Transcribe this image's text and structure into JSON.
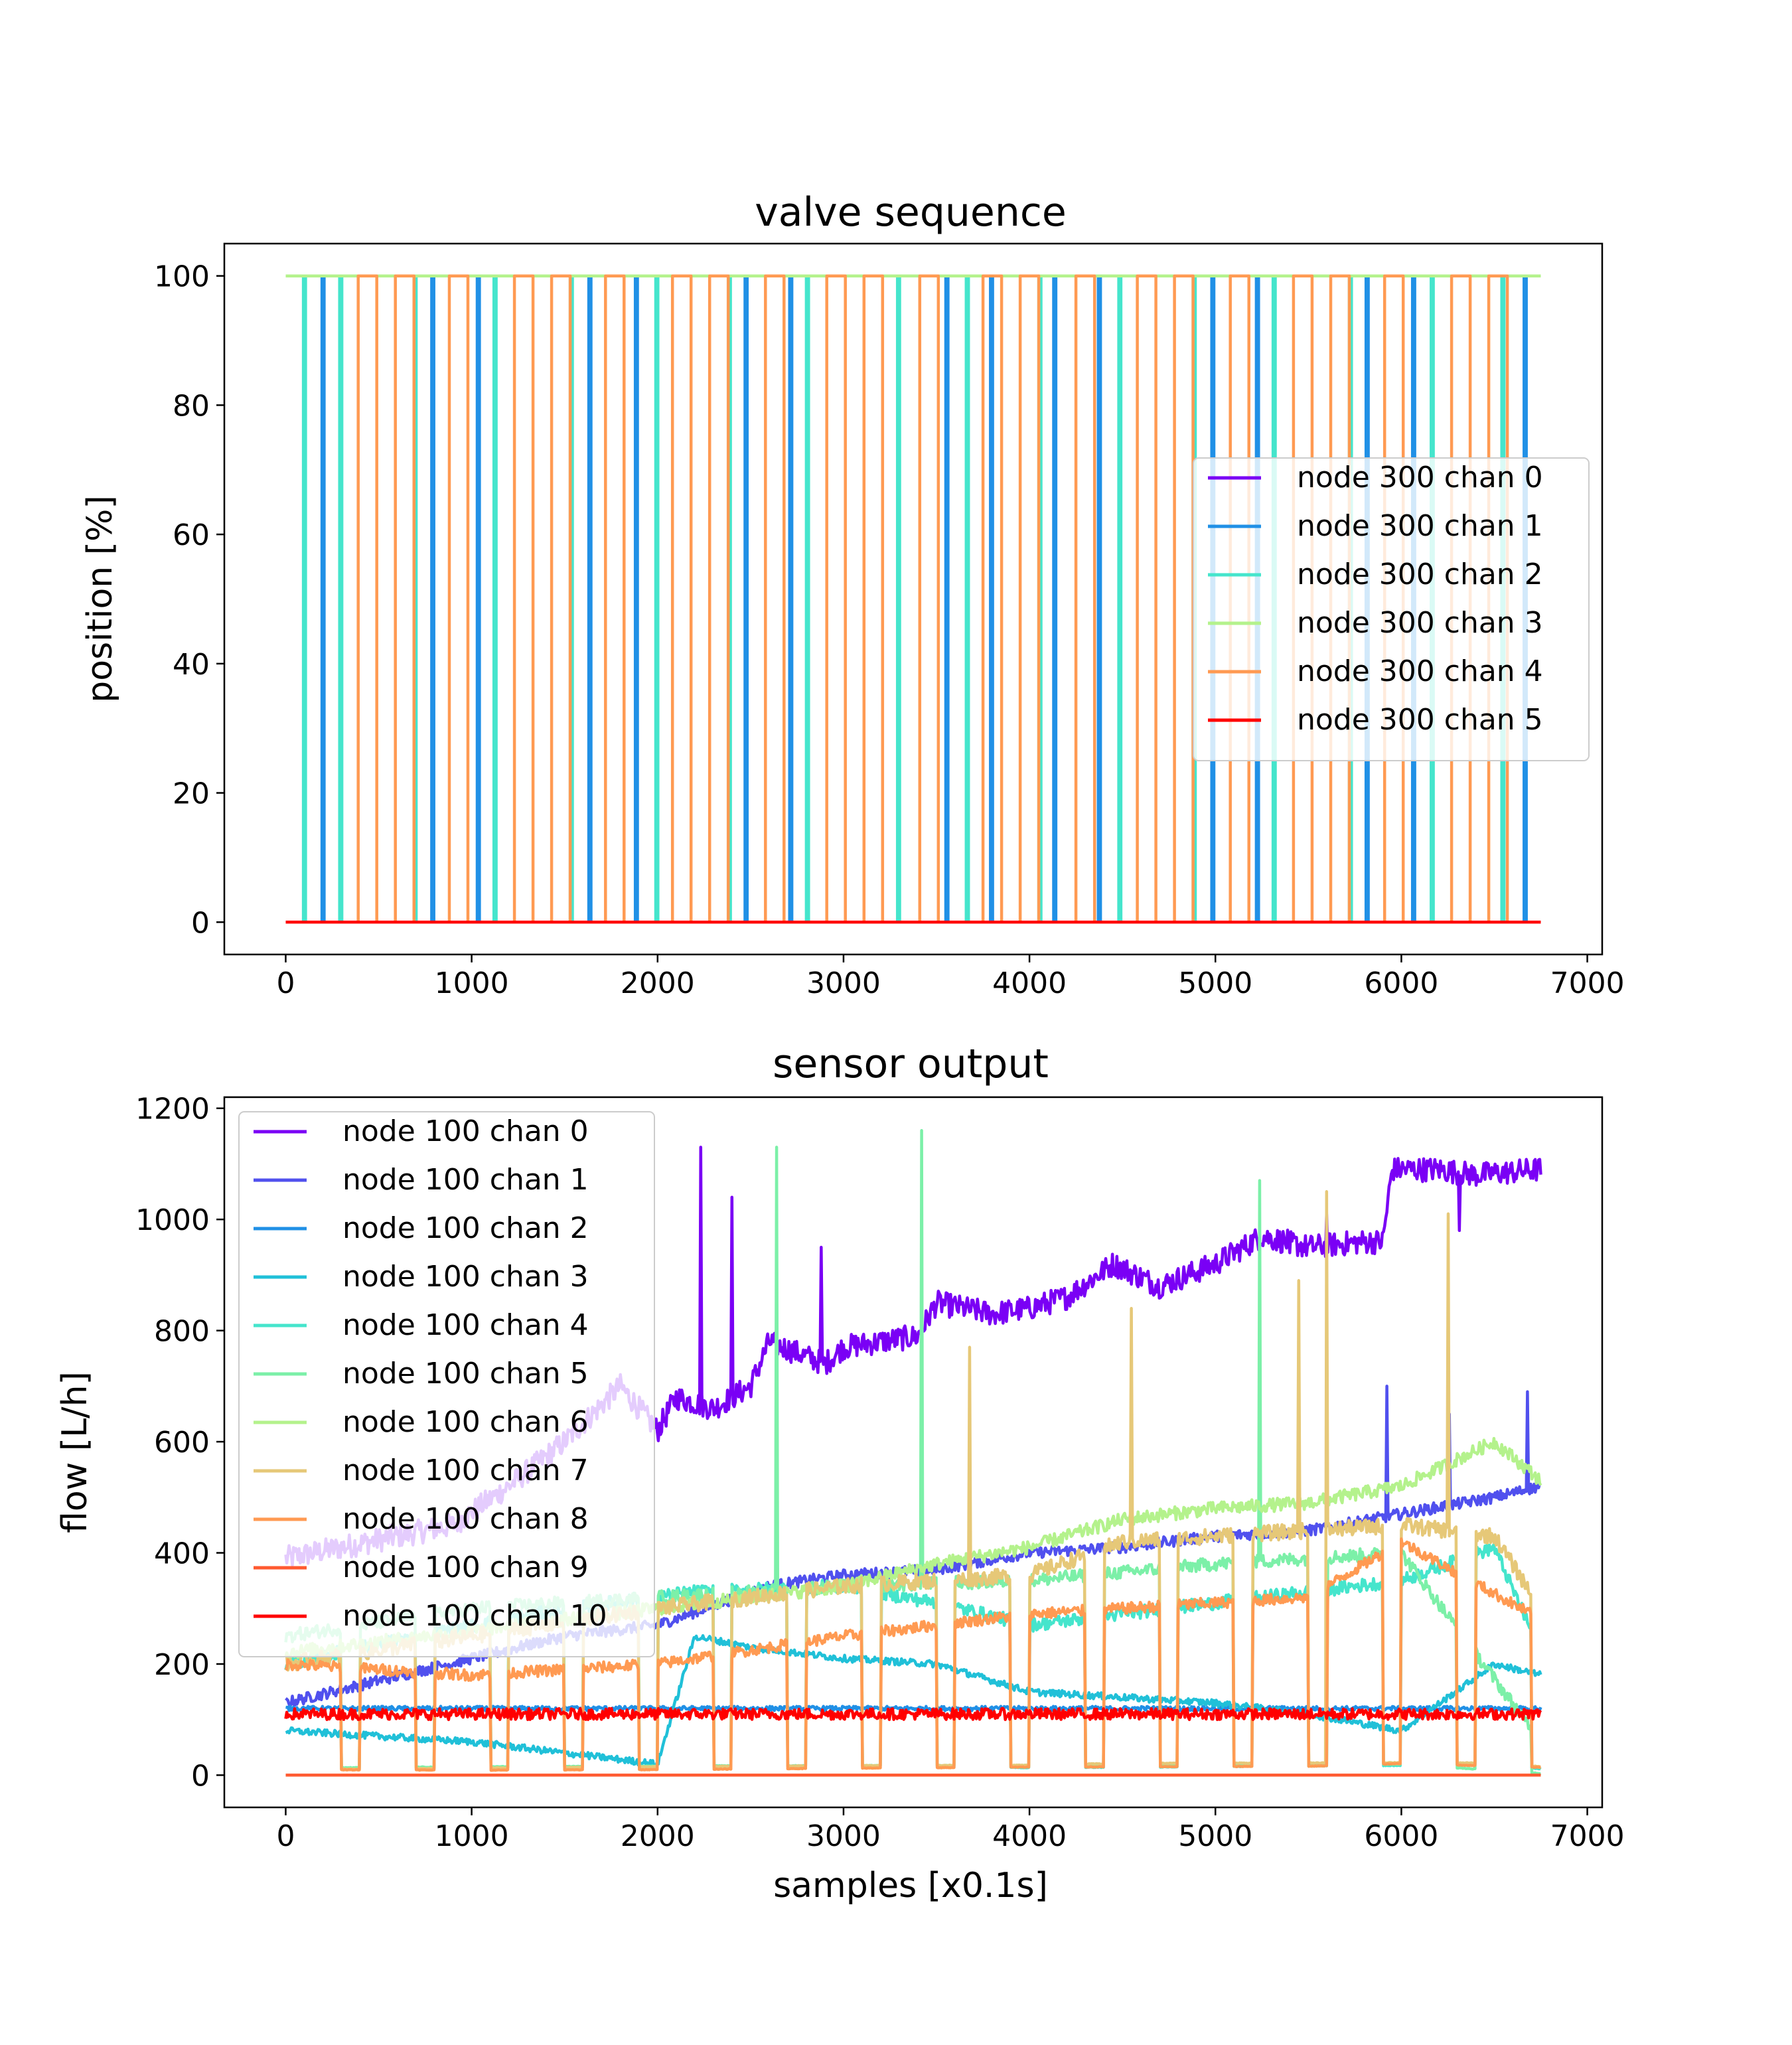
{
  "chart_data": [
    {
      "type": "line",
      "title": "valve sequence",
      "xlabel": "",
      "ylabel": "position [%]",
      "xlim": [
        -330,
        7080
      ],
      "ylim": [
        -5,
        105
      ],
      "xticks": [
        0,
        1000,
        2000,
        3000,
        4000,
        5000,
        6000,
        7000
      ],
      "yticks": [
        0,
        20,
        40,
        60,
        80,
        100
      ],
      "legend_position": "center-right",
      "series": [
        {
          "name": "node 300 chan 0",
          "color": "#7a00f5",
          "points": [
            [
              0,
              0
            ],
            [
              6750,
              0
            ]
          ]
        },
        {
          "name": "node 300 chan 1",
          "color": "#2090e6",
          "pulses": {
            "level_low": 0,
            "level_high": 100,
            "width": 12,
            "starts": [
              195,
              785,
              1030,
              1630,
              1880,
              2470,
              2710,
              3550,
              3790,
              4130,
              4370,
              4980,
              5220,
              5810,
              6060,
              6660
            ]
          }
        },
        {
          "name": "node 300 chan 2",
          "color": "#45e5cc",
          "pulses": {
            "level_low": 0,
            "level_high": 100,
            "width": 12,
            "starts": [
              95,
              290,
              690,
              1120,
              1530,
              1990,
              2380,
              2800,
              3290,
              3660,
              4050,
              4480,
              4880,
              5310,
              5720,
              6160,
              6540
            ]
          }
        },
        {
          "name": "node 300 chan 3",
          "color": "#b4f28c",
          "pulses": {
            "level_low": 100,
            "level_high": 100,
            "width": 0,
            "starts": []
          },
          "points": [
            [
              0,
              100
            ],
            [
              6750,
              100
            ]
          ]
        },
        {
          "name": "node 300 chan 4",
          "color": "#ff9a52",
          "pulses": {
            "level_low": 0,
            "level_high": 100,
            "width": 100,
            "starts": [
              390,
              590,
              880,
              1230,
              1430,
              1720,
              2080,
              2280,
              2580,
              2910,
              3110,
              3410,
              3750,
              3950,
              4250,
              4580,
              4780,
              5080,
              5420,
              5620,
              5910,
              6270,
              6470
            ]
          }
        },
        {
          "name": "node 300 chan 5",
          "color": "#ff0000",
          "points": [
            [
              0,
              0
            ],
            [
              6750,
              0
            ]
          ]
        }
      ]
    },
    {
      "type": "line",
      "title": "sensor output",
      "xlabel": "samples [x0.1s]",
      "ylabel": "flow [L/h]",
      "xlim": [
        -330,
        7080
      ],
      "ylim": [
        -58,
        1220
      ],
      "xticks": [
        0,
        1000,
        2000,
        3000,
        4000,
        5000,
        6000,
        7000
      ],
      "yticks": [
        0,
        200,
        400,
        600,
        800,
        1000,
        1200
      ],
      "legend_position": "top-left",
      "series": [
        {
          "name": "node 100 chan 0",
          "color": "#7a00f5",
          "noise": 22,
          "points": [
            [
              0,
              390
            ],
            [
              300,
              410
            ],
            [
              600,
              430
            ],
            [
              900,
              450
            ],
            [
              1200,
              520
            ],
            [
              1500,
              600
            ],
            [
              1800,
              700
            ],
            [
              2000,
              620
            ],
            [
              2100,
              680
            ],
            [
              2300,
              660
            ],
            [
              2500,
              700
            ],
            [
              2600,
              780
            ],
            [
              2900,
              740
            ],
            [
              3000,
              770
            ],
            [
              3400,
              790
            ],
            [
              3500,
              850
            ],
            [
              3800,
              830
            ],
            [
              4000,
              840
            ],
            [
              4200,
              860
            ],
            [
              4450,
              920
            ],
            [
              4700,
              880
            ],
            [
              5000,
              920
            ],
            [
              5250,
              970
            ],
            [
              5500,
              950
            ],
            [
              5800,
              960
            ],
            [
              5900,
              960
            ],
            [
              5950,
              1090
            ],
            [
              6200,
              1090
            ],
            [
              6400,
              1080
            ],
            [
              6750,
              1090
            ]
          ],
          "spikes": [
            [
              2230,
              1130
            ],
            [
              2400,
              1040
            ],
            [
              2880,
              950
            ],
            [
              5400,
              940
            ],
            [
              5600,
              1010
            ],
            [
              6310,
              980
            ],
            [
              6600,
              1080
            ]
          ]
        },
        {
          "name": "node 100 chan 1",
          "color": "#5050ee",
          "noise": 10,
          "points": [
            [
              0,
              130
            ],
            [
              500,
              170
            ],
            [
              1000,
              210
            ],
            [
              1500,
              250
            ],
            [
              2000,
              270
            ],
            [
              2600,
              340
            ],
            [
              3000,
              360
            ],
            [
              3500,
              370
            ],
            [
              4000,
              400
            ],
            [
              4500,
              410
            ],
            [
              5000,
              430
            ],
            [
              5500,
              440
            ],
            [
              6000,
              470
            ],
            [
              6500,
              500
            ],
            [
              6750,
              520
            ]
          ],
          "spikes": [
            [
              5920,
              700
            ],
            [
              6260,
              650
            ],
            [
              6680,
              690
            ]
          ]
        },
        {
          "name": "node 100 chan 2",
          "color": "#2090e6",
          "noise": 4,
          "points": [
            [
              0,
              120
            ],
            [
              6750,
              120
            ]
          ]
        },
        {
          "name": "node 100 chan 3",
          "color": "#20c0d8",
          "noise": 6,
          "points": [
            [
              0,
              80
            ],
            [
              1000,
              60
            ],
            [
              2000,
              20
            ],
            [
              2200,
              250
            ],
            [
              2500,
              230
            ],
            [
              3000,
              210
            ],
            [
              3500,
              200
            ],
            [
              4000,
              150
            ],
            [
              4500,
              140
            ],
            [
              5000,
              130
            ],
            [
              5500,
              110
            ],
            [
              6000,
              80
            ],
            [
              6500,
              200
            ],
            [
              6750,
              180
            ]
          ]
        },
        {
          "name": "node 100 chan 4",
          "color": "#45e5cc",
          "noise": 12,
          "pulsed": true,
          "points": [
            [
              0,
              200
            ],
            [
              700,
              250
            ],
            [
              1500,
              300
            ],
            [
              2200,
              330
            ],
            [
              3000,
              340
            ],
            [
              3500,
              310
            ],
            [
              4000,
              270
            ],
            [
              4500,
              290
            ],
            [
              5000,
              310
            ],
            [
              5500,
              330
            ],
            [
              6000,
              350
            ],
            [
              6500,
              410
            ],
            [
              6750,
              220
            ]
          ]
        },
        {
          "name": "node 100 chan 5",
          "color": "#7cf0a8",
          "noise": 12,
          "pulsed": true,
          "points": [
            [
              0,
              250
            ],
            [
              1000,
              300
            ],
            [
              2000,
              320
            ],
            [
              3000,
              340
            ],
            [
              4000,
              350
            ],
            [
              5000,
              380
            ],
            [
              6000,
              400
            ],
            [
              6750,
              60
            ]
          ],
          "spikes": [
            [
              2640,
              1130
            ],
            [
              3420,
              1160
            ],
            [
              5240,
              1070
            ]
          ]
        },
        {
          "name": "node 100 chan 6",
          "color": "#b4f28c",
          "noise": 12,
          "points": [
            [
              0,
              220
            ],
            [
              1000,
              260
            ],
            [
              2000,
              300
            ],
            [
              3000,
              340
            ],
            [
              3500,
              380
            ],
            [
              4000,
              410
            ],
            [
              4500,
              460
            ],
            [
              5000,
              480
            ],
            [
              5500,
              490
            ],
            [
              6000,
              520
            ],
            [
              6500,
              600
            ],
            [
              6750,
              530
            ]
          ]
        },
        {
          "name": "node 100 chan 7",
          "color": "#e6c878",
          "noise": 14,
          "pulsed": true,
          "points": [
            [
              0,
              200
            ],
            [
              1000,
              250
            ],
            [
              2000,
              300
            ],
            [
              2500,
              320
            ],
            [
              3000,
              340
            ],
            [
              3500,
              350
            ],
            [
              4000,
              360
            ],
            [
              4500,
              420
            ],
            [
              5000,
              430
            ],
            [
              5500,
              440
            ],
            [
              6000,
              450
            ],
            [
              6500,
              430
            ],
            [
              6750,
              300
            ]
          ],
          "spikes": [
            [
              3680,
              770
            ],
            [
              4550,
              840
            ],
            [
              5450,
              890
            ],
            [
              5600,
              1050
            ],
            [
              6250,
              1010
            ]
          ]
        },
        {
          "name": "node 100 chan 8",
          "color": "#ff9a52",
          "noise": 10,
          "pulsed": true,
          "points": [
            [
              0,
              200
            ],
            [
              1000,
              180
            ],
            [
              2000,
              200
            ],
            [
              3000,
              250
            ],
            [
              4000,
              290
            ],
            [
              5000,
              310
            ],
            [
              5500,
              320
            ],
            [
              6000,
              420
            ],
            [
              6750,
              280
            ]
          ]
        },
        {
          "name": "node 100 chan 9",
          "color": "#ff5a30",
          "noise": 0,
          "points": [
            [
              0,
              0
            ],
            [
              6750,
              0
            ]
          ]
        },
        {
          "name": "node 100 chan 10",
          "color": "#ff0000",
          "noise": 10,
          "points": [
            [
              0,
              110
            ],
            [
              6750,
              110
            ]
          ]
        }
      ]
    }
  ]
}
